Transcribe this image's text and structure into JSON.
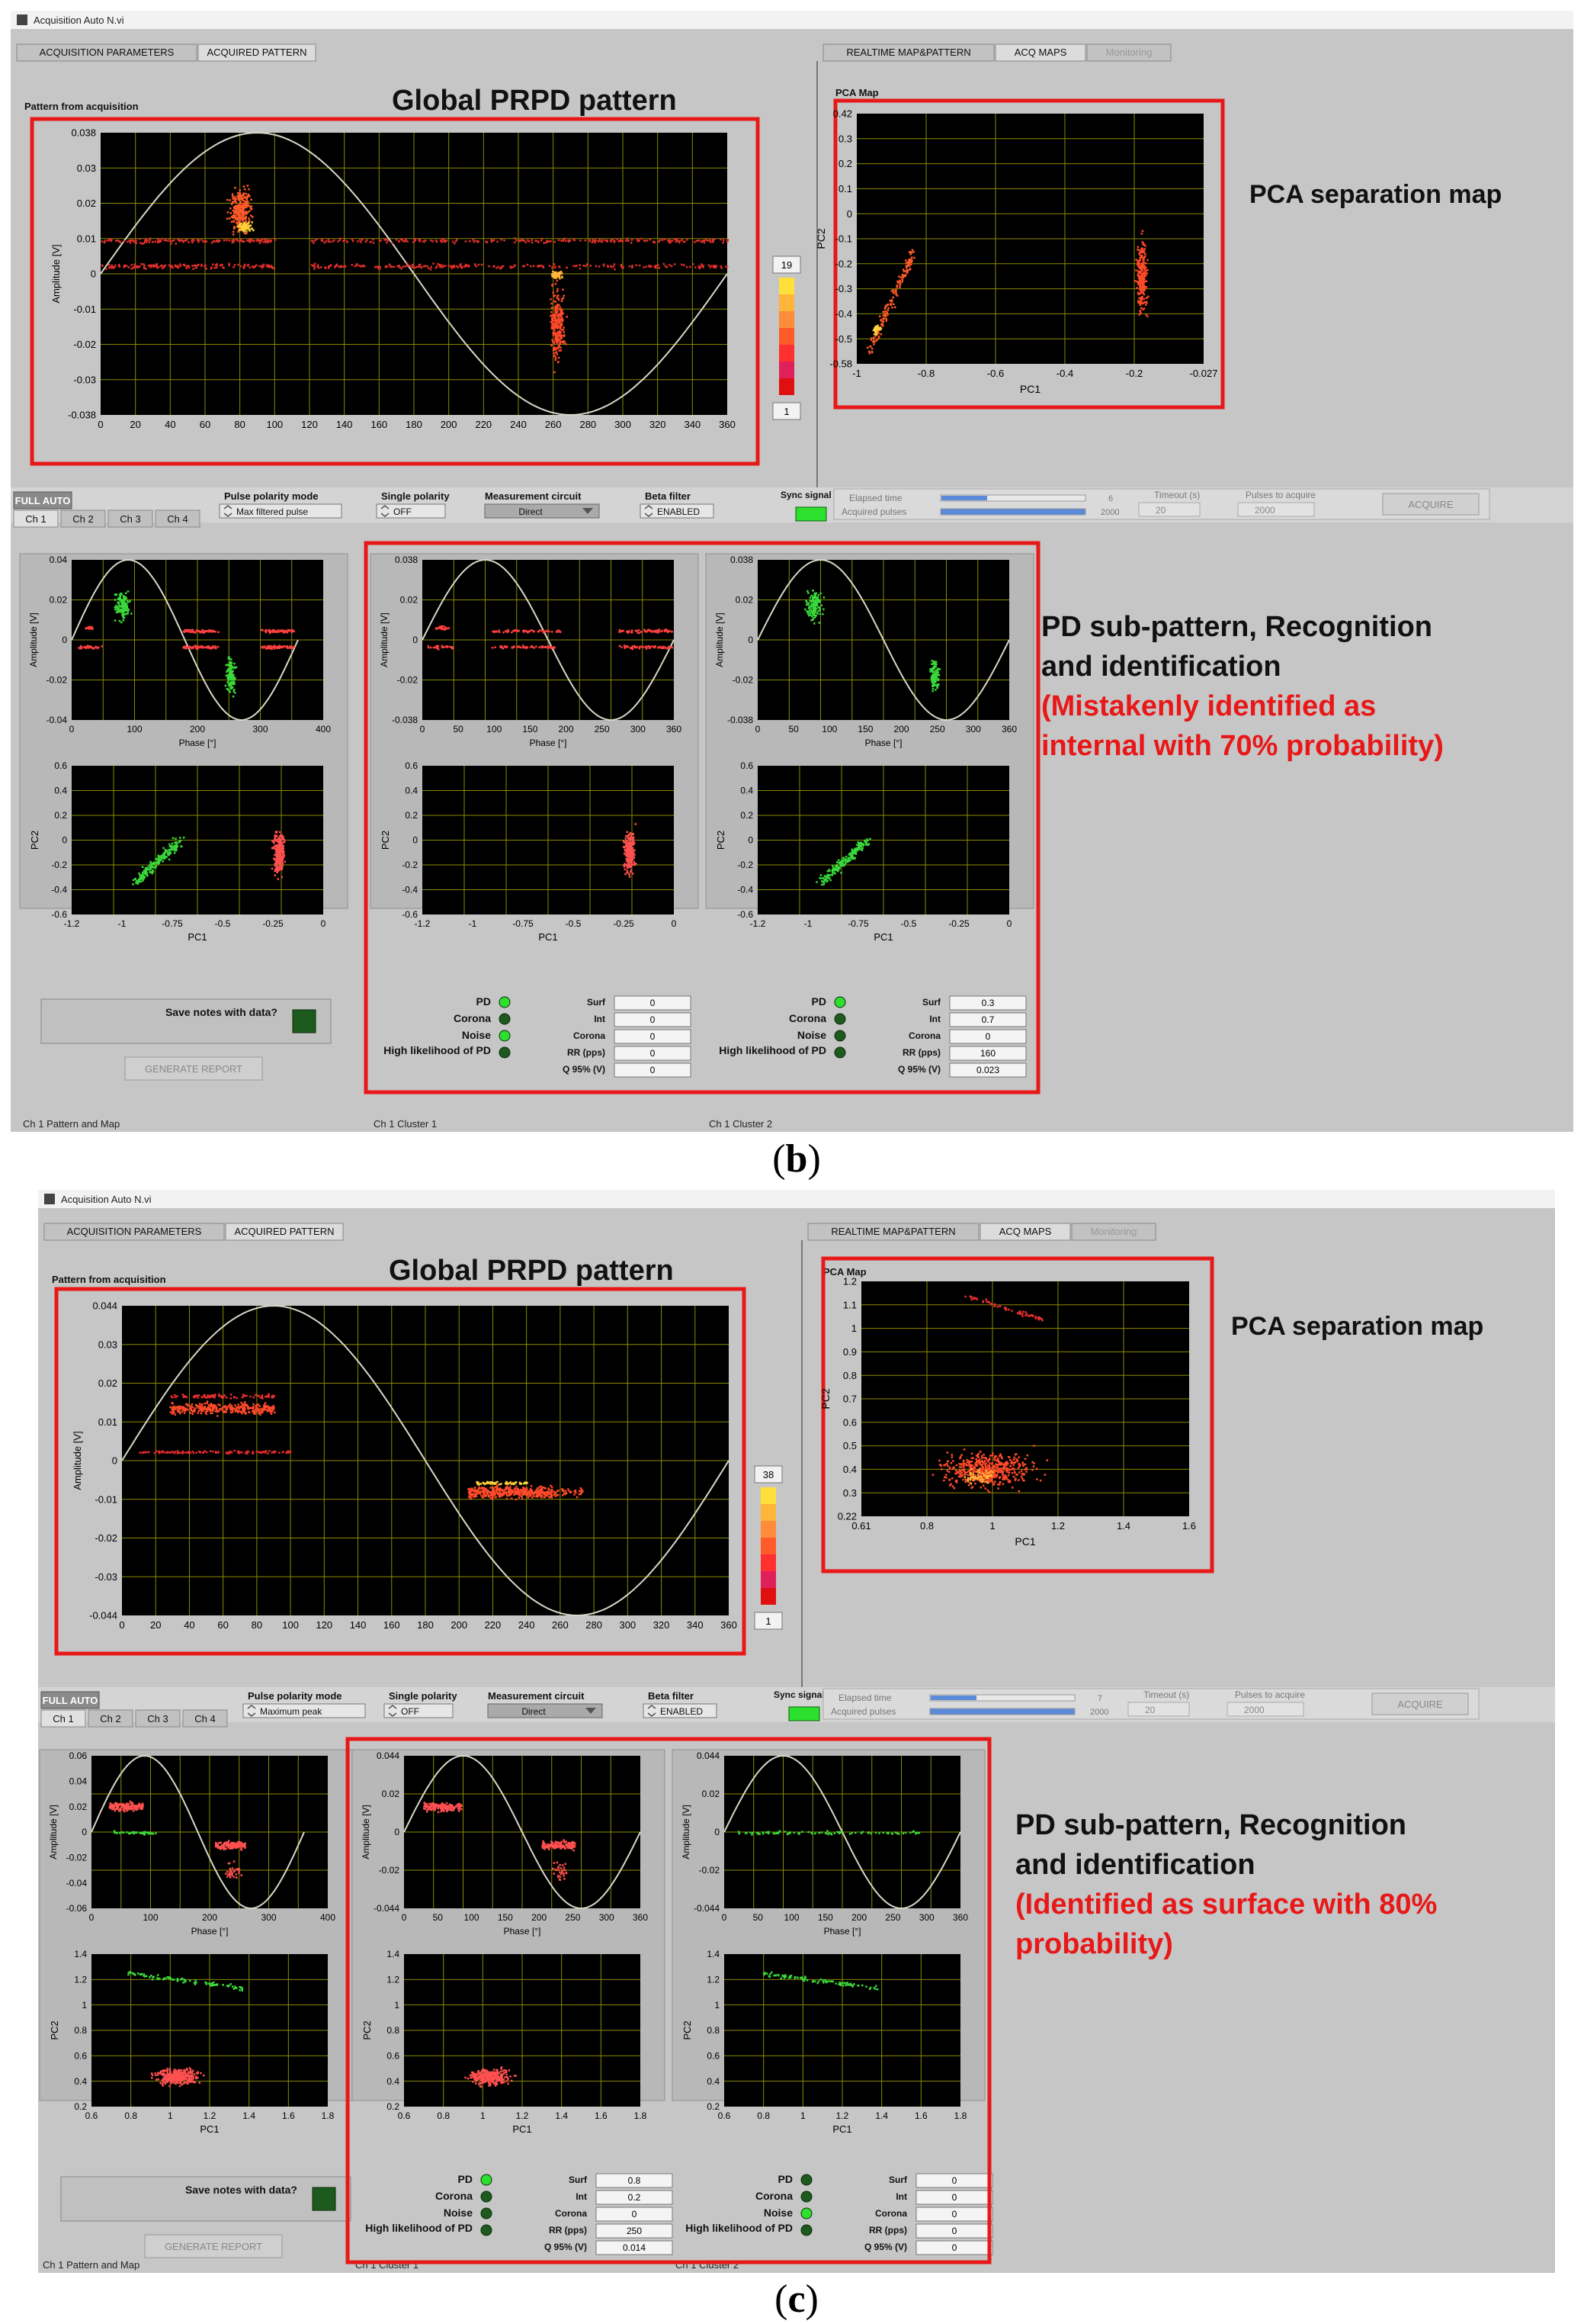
{
  "captions": {
    "b": "b",
    "c": "c"
  },
  "panels": [
    {
      "id": "b",
      "window_title": "Acquisition Auto N.vi",
      "tabs_left": [
        "ACQUISITION PARAMETERS",
        "ACQUIRED PATTERN"
      ],
      "tabs_right": [
        "REALTIME MAP&PATTERN",
        "ACQ MAPS",
        "Monitoring"
      ],
      "pattern_label": "Pattern from acquisition",
      "global_title": "Global PRPD pattern",
      "pca_label": "PCA Map",
      "pca_title": "PCA separation map",
      "colorscale": {
        "max": "19",
        "min": "1"
      },
      "controls": {
        "full_auto": "FULL AUTO",
        "ch_tabs": [
          "Ch 1",
          "Ch 2",
          "Ch 3",
          "Ch 4"
        ],
        "pulse_polarity_label": "Pulse polarity mode",
        "pulse_polarity_value": "Max filtered pulse",
        "single_polarity_label": "Single polarity",
        "single_polarity_value": "OFF",
        "meas_circuit_label": "Measurement circuit",
        "meas_circuit_value": "Direct",
        "beta_filter_label": "Beta filter",
        "beta_filter_value": "ENABLED",
        "sync_label": "Sync signal connected?",
        "elapsed_label": "Elapsed time",
        "elapsed_value": "6",
        "acquired_label": "Acquired pulses",
        "acquired_value": "2000",
        "timeout_label": "Timeout (s)",
        "timeout_value": "20",
        "pulses_label": "Pulses to acquire",
        "pulses_value": "2000",
        "acquire_button": "ACQUIRE"
      },
      "annotation": {
        "line1": "PD sub-pattern, Recognition",
        "line2": "and identification",
        "red1": "(Mistakenly identified as",
        "red2": "internal with 70% probability)"
      },
      "save_notes": "Save notes with data?",
      "generate_report": "GENERATE REPORT",
      "footer": [
        "Ch 1 Pattern and Map",
        "Ch 1 Cluster 1",
        "Ch 1 Cluster 2"
      ],
      "clusters": [
        {
          "PD": "PD",
          "Corona": "Corona",
          "Noise": "Noise",
          "High": "High likelihood of PD",
          "Surf": "0",
          "Int": "0",
          "CoronaVal": "0",
          "RR": "0",
          "Q95": "0"
        },
        {
          "PD": "PD",
          "Corona": "Corona",
          "Noise": "Noise",
          "High": "High likelihood of PD",
          "Surf": "0.3",
          "Int": "0.7",
          "CoronaVal": "0",
          "RR": "160",
          "Q95": "0.023"
        }
      ],
      "result_labels": {
        "surf": "Surf",
        "int": "Int",
        "corona": "Corona",
        "rr": "RR (pps)",
        "q95": "Q 95% (V)"
      },
      "global_axes": {
        "yticks": [
          "0.038",
          "0.03",
          "0.02",
          "0.01",
          "0",
          "-0.01",
          "-0.02",
          "-0.03",
          "-0.038"
        ],
        "xticks": [
          "0",
          "20",
          "40",
          "60",
          "80",
          "100",
          "120",
          "140",
          "160",
          "180",
          "200",
          "220",
          "240",
          "260",
          "280",
          "300",
          "320",
          "340",
          "360"
        ],
        "ylabel": "Amplitude [V]"
      },
      "pca_axes": {
        "yticks": [
          "0.42",
          "0.3",
          "0.2",
          "0.1",
          "0",
          "-0.1",
          "-0.2",
          "-0.3",
          "-0.4",
          "-0.5",
          "-0.58"
        ],
        "xticks": [
          "-1",
          "-0.8",
          "-0.6",
          "-0.4",
          "-0.2",
          "-0.027"
        ],
        "xlabel": "PC1",
        "ylabel": "PC2"
      },
      "sub_axes": [
        {
          "yticks": [
            "0.04",
            "0.02",
            "0",
            "-0.02",
            "-0.04"
          ],
          "xticks": [
            "0",
            "100",
            "200",
            "300",
            "400"
          ],
          "xlabel": "Phase [°]",
          "ylabel": "Amplitude [V]"
        },
        {
          "yticks": [
            "0.038",
            "0.02",
            "0",
            "-0.02",
            "-0.038"
          ],
          "xticks": [
            "0",
            "50",
            "100",
            "150",
            "200",
            "250",
            "300",
            "360"
          ],
          "xlabel": "Phase [°]",
          "ylabel": "Amplitude [V]"
        },
        {
          "yticks": [
            "0.038",
            "0.02",
            "0",
            "-0.02",
            "-0.038"
          ],
          "xticks": [
            "0",
            "50",
            "100",
            "150",
            "200",
            "250",
            "300",
            "360"
          ],
          "xlabel": "Phase [°]",
          "ylabel": "Amplitude [V]"
        }
      ],
      "sub_pca_axes": {
        "yticks": [
          "0.6",
          "0.4",
          "0.2",
          "0",
          "-0.2",
          "-0.4",
          "-0.6"
        ],
        "xticks": [
          "-1.2",
          "-1",
          "-0.75",
          "-0.5",
          "-0.25",
          "0"
        ],
        "xlabel": "PC1",
        "ylabel": "PC2"
      }
    },
    {
      "id": "c",
      "window_title": "Acquisition Auto N.vi",
      "tabs_left": [
        "ACQUISITION PARAMETERS",
        "ACQUIRED PATTERN"
      ],
      "tabs_right": [
        "REALTIME MAP&PATTERN",
        "ACQ MAPS",
        "Monitoring"
      ],
      "pattern_label": "Pattern from acquisition",
      "global_title": "Global PRPD pattern",
      "pca_label": "PCA Map",
      "pca_title": "PCA separation map",
      "colorscale": {
        "max": "38",
        "min": "1"
      },
      "controls": {
        "full_auto": "FULL AUTO",
        "ch_tabs": [
          "Ch 1",
          "Ch 2",
          "Ch 3",
          "Ch 4"
        ],
        "pulse_polarity_label": "Pulse polarity mode",
        "pulse_polarity_value": "Maximum peak",
        "single_polarity_label": "Single polarity",
        "single_polarity_value": "OFF",
        "meas_circuit_label": "Measurement circuit",
        "meas_circuit_value": "Direct",
        "beta_filter_label": "Beta filter",
        "beta_filter_value": "ENABLED",
        "sync_label": "Sync signal connected?",
        "elapsed_label": "Elapsed time",
        "elapsed_value": "7",
        "acquired_label": "Acquired pulses",
        "acquired_value": "2000",
        "timeout_label": "Timeout (s)",
        "timeout_value": "20",
        "pulses_label": "Pulses to acquire",
        "pulses_value": "2000",
        "acquire_button": "ACQUIRE"
      },
      "annotation": {
        "line1": "PD sub-pattern, Recognition",
        "line2": "and identification",
        "red1": "(Identified as surface with 80%",
        "red2": "probability)"
      },
      "save_notes": "Save notes with data?",
      "generate_report": "GENERATE REPORT",
      "footer": [
        "Ch 1 Pattern and Map",
        "Ch 1 Cluster 1",
        "Ch 1 Cluster 2"
      ],
      "clusters": [
        {
          "PD": "PD",
          "Corona": "Corona",
          "Noise": "Noise",
          "High": "High likelihood of PD",
          "Surf": "0.8",
          "Int": "0.2",
          "CoronaVal": "0",
          "RR": "250",
          "Q95": "0.014"
        },
        {
          "PD": "PD",
          "Corona": "Corona",
          "Noise": "Noise",
          "High": "High likelihood of PD",
          "Surf": "0",
          "Int": "0",
          "CoronaVal": "0",
          "RR": "0",
          "Q95": "0"
        }
      ],
      "result_labels": {
        "surf": "Surf",
        "int": "Int",
        "corona": "Corona",
        "rr": "RR (pps)",
        "q95": "Q 95% (V)"
      },
      "global_axes": {
        "yticks": [
          "0.044",
          "0.03",
          "0.02",
          "0.01",
          "0",
          "-0.01",
          "-0.02",
          "-0.03",
          "-0.044"
        ],
        "xticks": [
          "0",
          "20",
          "40",
          "60",
          "80",
          "100",
          "120",
          "140",
          "160",
          "180",
          "200",
          "220",
          "240",
          "260",
          "280",
          "300",
          "320",
          "340",
          "360"
        ],
        "ylabel": "Amplitude [V]"
      },
      "pca_axes": {
        "yticks": [
          "1.2",
          "1.1",
          "1",
          "0.9",
          "0.8",
          "0.7",
          "0.6",
          "0.5",
          "0.4",
          "0.3",
          "0.22"
        ],
        "xticks": [
          "0.61",
          "0.8",
          "1",
          "1.2",
          "1.4",
          "1.6"
        ],
        "xlabel": "PC1",
        "ylabel": "PC2"
      },
      "sub_axes": [
        {
          "yticks": [
            "0.06",
            "0.04",
            "0.02",
            "0",
            "-0.02",
            "-0.04",
            "-0.06"
          ],
          "xticks": [
            "0",
            "100",
            "200",
            "300",
            "400"
          ],
          "xlabel": "Phase [°]",
          "ylabel": "Amplitude [V]"
        },
        {
          "yticks": [
            "0.044",
            "0.02",
            "0",
            "-0.02",
            "-0.044"
          ],
          "xticks": [
            "0",
            "50",
            "100",
            "150",
            "200",
            "250",
            "300",
            "360"
          ],
          "xlabel": "Phase [°]",
          "ylabel": "Amplitude [V]"
        },
        {
          "yticks": [
            "0.044",
            "0.02",
            "0",
            "-0.02",
            "-0.044"
          ],
          "xticks": [
            "0",
            "50",
            "100",
            "150",
            "200",
            "250",
            "300",
            "360"
          ],
          "xlabel": "Phase [°]",
          "ylabel": "Amplitude [V]"
        }
      ],
      "sub_pca_axes": {
        "yticks": [
          "1.4",
          "1.2",
          "1",
          "0.8",
          "0.6",
          "0.4",
          "0.2"
        ],
        "xticks": [
          "0.6",
          "0.8",
          "1",
          "1.2",
          "1.4",
          "1.6",
          "1.8"
        ],
        "xlabel": "PC1",
        "ylabel": "PC2"
      }
    }
  ]
}
